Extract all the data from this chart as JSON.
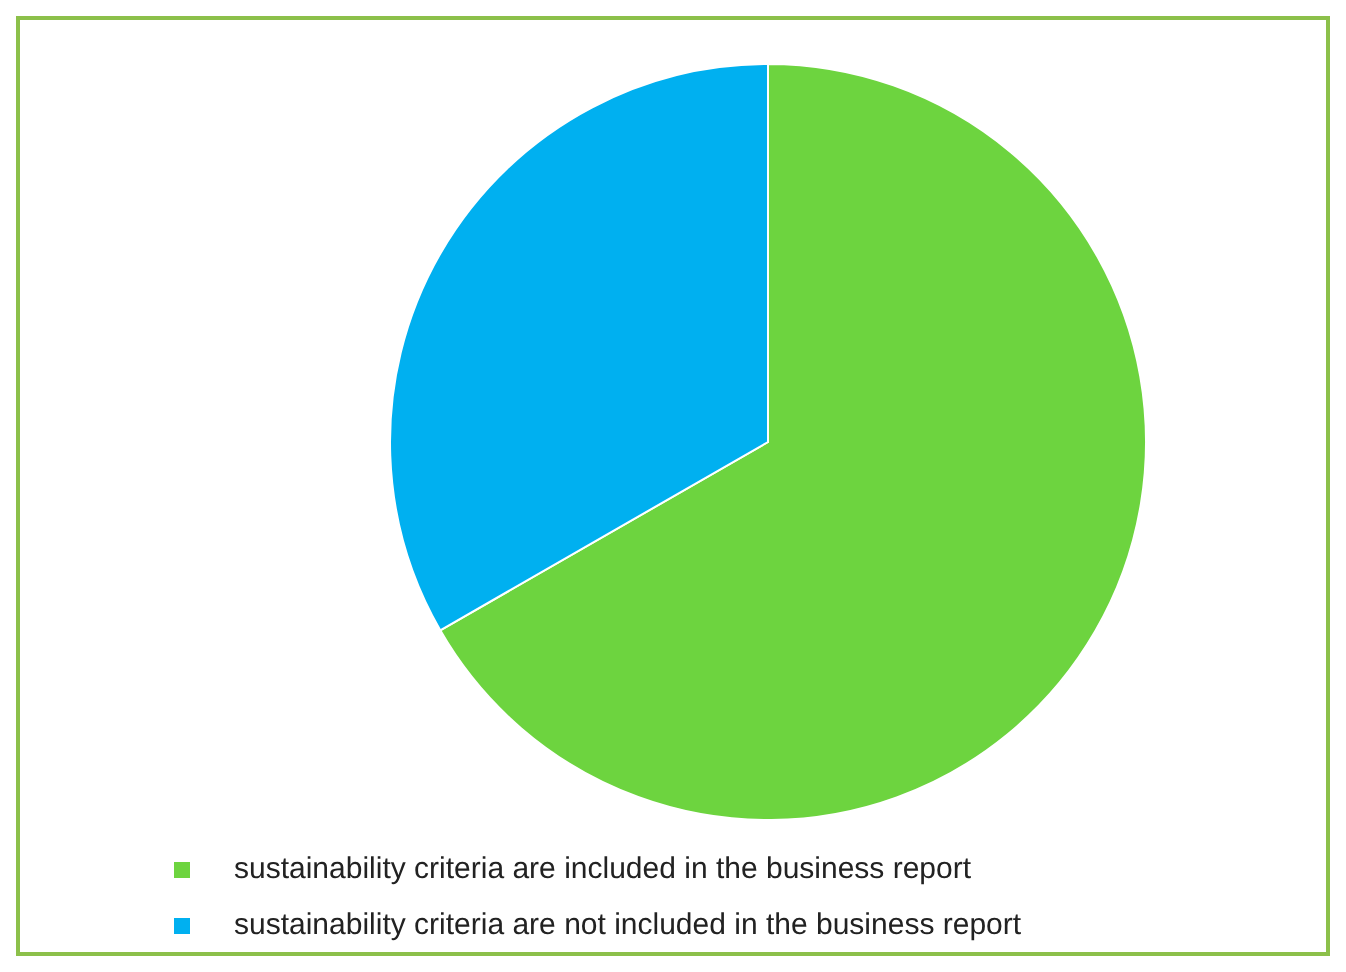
{
  "chart_data": {
    "type": "pie",
    "categories": [
      "sustainability criteria are included in the business report",
      "sustainability criteria are not included in the business report"
    ],
    "values": [
      66.7,
      33.3
    ],
    "colors": [
      "#6dd43f",
      "#00b0f0"
    ],
    "legend": "bottom"
  }
}
